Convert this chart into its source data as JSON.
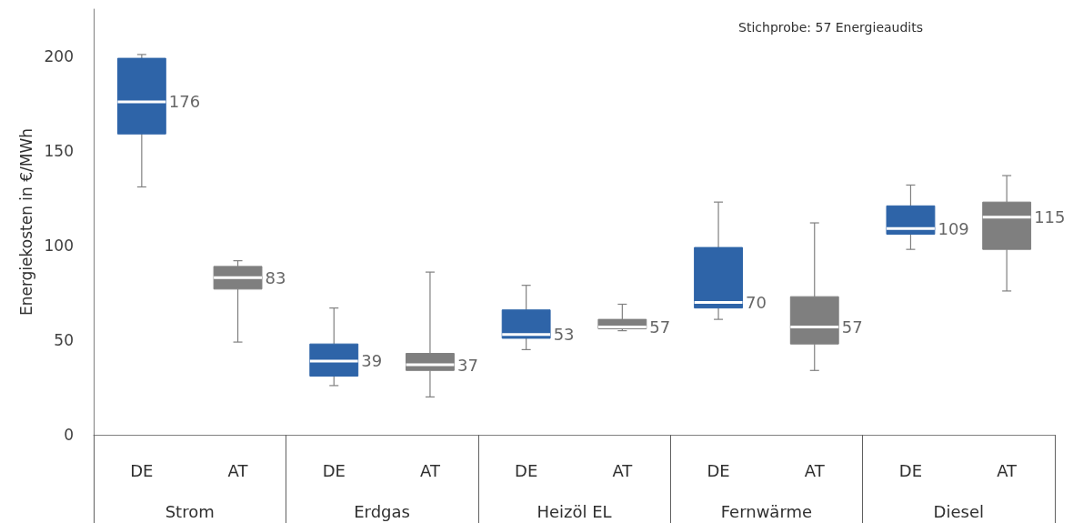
{
  "chart_data": {
    "type": "box",
    "subtitle": "Stichprobe: 57 Energieaudits",
    "ylabel": "Energiekosten in €/MWh",
    "categories": [
      "DE",
      "AT",
      "DE",
      "AT",
      "DE",
      "AT",
      "DE",
      "AT",
      "DE",
      "AT"
    ],
    "annotations": [
      "Strom",
      "Erdgas",
      "Heizöl EL",
      "Fernwärme",
      "Diesel"
    ],
    "colors": [
      "#2e64a8",
      "#7f7f7f",
      "#2e64a8",
      "#7f7f7f",
      "#2e64a8",
      "#7f7f7f",
      "#2e64a8",
      "#7f7f7f",
      "#2e64a8",
      "#7f7f7f"
    ],
    "boxes": [
      {
        "low": 131,
        "q1": 159,
        "median": 176,
        "q3": 199,
        "high": 201
      },
      {
        "low": 49,
        "q1": 77,
        "median": 83,
        "q3": 89,
        "high": 92
      },
      {
        "low": 26,
        "q1": 31,
        "median": 39,
        "q3": 48,
        "high": 67
      },
      {
        "low": 20,
        "q1": 34,
        "median": 37,
        "q3": 43,
        "high": 86
      },
      {
        "low": 45,
        "q1": 51,
        "median": 53,
        "q3": 66,
        "high": 79
      },
      {
        "low": 55,
        "q1": 56,
        "median": 57,
        "q3": 61,
        "high": 69
      },
      {
        "low": 61,
        "q1": 67,
        "median": 70,
        "q3": 99,
        "high": 123
      },
      {
        "low": 34,
        "q1": 48,
        "median": 57,
        "q3": 73,
        "high": 112
      },
      {
        "low": 98,
        "q1": 106,
        "median": 109,
        "q3": 121,
        "high": 132
      },
      {
        "low": 76,
        "q1": 98,
        "median": 115,
        "q3": 123,
        "high": 137
      }
    ],
    "ylim": [
      0,
      225
    ],
    "yticks": [
      0,
      50,
      100,
      150,
      200
    ],
    "grid": false,
    "tick_labels": "y",
    "value_labels": [
      "176",
      "83",
      "39",
      "37",
      "53",
      "57",
      "70",
      "57",
      "109",
      "115"
    ]
  }
}
